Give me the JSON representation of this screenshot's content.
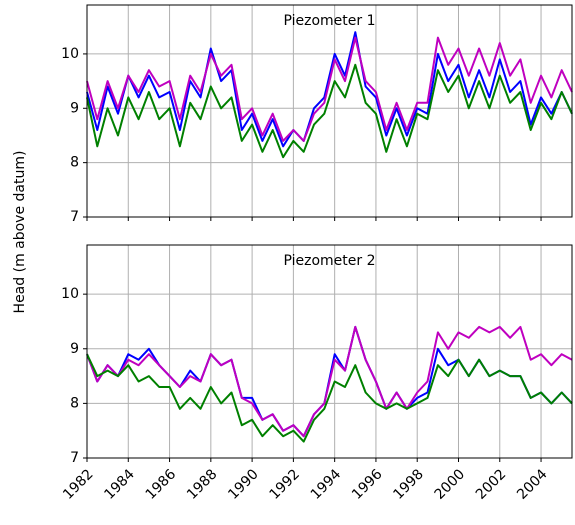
{
  "chart_data": [
    {
      "type": "line",
      "title": "Piezometer 1",
      "ylabel": "Head (m above datum)",
      "x": [
        1982,
        1982.5,
        1983,
        1983.5,
        1984,
        1984.5,
        1985,
        1985.5,
        1986,
        1986.5,
        1987,
        1987.5,
        1988,
        1988.5,
        1989,
        1989.5,
        1990,
        1990.5,
        1991,
        1991.5,
        1992,
        1992.5,
        1993,
        1993.5,
        1994,
        1994.5,
        1995,
        1995.5,
        1996,
        1996.5,
        1997,
        1997.5,
        1998,
        1998.5,
        1999,
        1999.5,
        2000,
        2000.5,
        2001,
        2001.5,
        2002,
        2002.5,
        2003,
        2003.5,
        2004,
        2004.5,
        2005,
        2005.5
      ],
      "series": [
        {
          "color": "#0000ff",
          "values": [
            9.3,
            8.6,
            9.4,
            8.9,
            9.6,
            9.2,
            9.6,
            9.2,
            9.3,
            8.6,
            9.5,
            9.2,
            10.1,
            9.5,
            9.7,
            8.6,
            8.9,
            8.4,
            8.8,
            8.3,
            8.6,
            8.4,
            9.0,
            9.2,
            10.0,
            9.6,
            10.4,
            9.4,
            9.2,
            8.5,
            9.0,
            8.5,
            9.0,
            8.9,
            10.0,
            9.5,
            9.8,
            9.2,
            9.7,
            9.2,
            9.9,
            9.3,
            9.5,
            8.7,
            9.2,
            8.9,
            9.3,
            8.9
          ]
        },
        {
          "color": "#bf00bf",
          "values": [
            9.5,
            8.8,
            9.5,
            9.0,
            9.6,
            9.3,
            9.7,
            9.4,
            9.5,
            8.8,
            9.6,
            9.3,
            10.0,
            9.6,
            9.8,
            8.8,
            9.0,
            8.5,
            8.9,
            8.4,
            8.6,
            8.4,
            8.9,
            9.1,
            9.9,
            9.5,
            10.3,
            9.5,
            9.3,
            8.6,
            9.1,
            8.6,
            9.1,
            9.1,
            10.3,
            9.8,
            10.1,
            9.6,
            10.1,
            9.6,
            10.2,
            9.6,
            9.9,
            9.1,
            9.6,
            9.2,
            9.7,
            9.3
          ]
        },
        {
          "color": "#008000",
          "values": [
            9.2,
            8.3,
            9.0,
            8.5,
            9.2,
            8.8,
            9.3,
            8.8,
            9.0,
            8.3,
            9.1,
            8.8,
            9.4,
            9.0,
            9.2,
            8.4,
            8.7,
            8.2,
            8.6,
            8.1,
            8.4,
            8.2,
            8.7,
            8.9,
            9.5,
            9.2,
            9.8,
            9.1,
            8.9,
            8.2,
            8.8,
            8.3,
            8.9,
            8.8,
            9.7,
            9.3,
            9.6,
            9.0,
            9.5,
            9.0,
            9.6,
            9.1,
            9.3,
            8.6,
            9.1,
            8.8,
            9.3,
            8.9
          ]
        }
      ],
      "xlim": [
        1982,
        2005.5
      ],
      "xticks": [
        1982,
        1984,
        1986,
        1988,
        1990,
        1992,
        1994,
        1996,
        1998,
        2000,
        2002,
        2004
      ],
      "ylim": [
        7,
        10.9
      ],
      "yticks": [
        7,
        8,
        9,
        10
      ],
      "grid": true
    },
    {
      "type": "line",
      "title": "Piezometer 2",
      "x": [
        1982,
        1982.5,
        1983,
        1983.5,
        1984,
        1984.5,
        1985,
        1985.5,
        1986,
        1986.5,
        1987,
        1987.5,
        1988,
        1988.5,
        1989,
        1989.5,
        1990,
        1990.5,
        1991,
        1991.5,
        1992,
        1992.5,
        1993,
        1993.5,
        1994,
        1994.5,
        1995,
        1995.5,
        1996,
        1996.5,
        1997,
        1997.5,
        1998,
        1998.5,
        1999,
        1999.5,
        2000,
        2000.5,
        2001,
        2001.5,
        2002,
        2002.5,
        2003,
        2003.5,
        2004,
        2004.5,
        2005,
        2005.5
      ],
      "series": [
        {
          "color": "#0000ff",
          "values": [
            8.9,
            8.4,
            8.7,
            8.5,
            8.9,
            8.8,
            9.0,
            8.7,
            8.5,
            8.3,
            8.6,
            8.4,
            8.9,
            8.7,
            8.8,
            8.1,
            8.1,
            7.7,
            7.8,
            7.5,
            7.6,
            7.4,
            7.8,
            8.0,
            8.9,
            8.6,
            9.4,
            8.8,
            8.4,
            7.9,
            8.2,
            7.9,
            8.1,
            8.2,
            9.0,
            8.7,
            8.8,
            8.5,
            8.8,
            8.5,
            8.6,
            8.5,
            8.5,
            8.1,
            8.2,
            8.0,
            8.2,
            8.0
          ]
        },
        {
          "color": "#bf00bf",
          "values": [
            8.9,
            8.4,
            8.7,
            8.5,
            8.8,
            8.7,
            8.9,
            8.7,
            8.5,
            8.3,
            8.5,
            8.4,
            8.9,
            8.7,
            8.8,
            8.1,
            8.0,
            7.7,
            7.8,
            7.5,
            7.6,
            7.4,
            7.8,
            8.0,
            8.8,
            8.6,
            9.4,
            8.8,
            8.4,
            7.9,
            8.2,
            7.9,
            8.2,
            8.4,
            9.3,
            9.0,
            9.3,
            9.2,
            9.4,
            9.3,
            9.4,
            9.2,
            9.4,
            8.8,
            8.9,
            8.7,
            8.9,
            8.8
          ]
        },
        {
          "color": "#008000",
          "values": [
            8.9,
            8.5,
            8.6,
            8.5,
            8.7,
            8.4,
            8.5,
            8.3,
            8.3,
            7.9,
            8.1,
            7.9,
            8.3,
            8.0,
            8.2,
            7.6,
            7.7,
            7.4,
            7.6,
            7.4,
            7.5,
            7.3,
            7.7,
            7.9,
            8.4,
            8.3,
            8.7,
            8.2,
            8.0,
            7.9,
            8.0,
            7.9,
            8.0,
            8.1,
            8.7,
            8.5,
            8.8,
            8.5,
            8.8,
            8.5,
            8.6,
            8.5,
            8.5,
            8.1,
            8.2,
            8.0,
            8.2,
            8.0
          ]
        }
      ],
      "xlim": [
        1982,
        2005.5
      ],
      "xticks": [
        1982,
        1984,
        1986,
        1988,
        1990,
        1992,
        1994,
        1996,
        1998,
        2000,
        2002,
        2004
      ],
      "ylim": [
        7,
        10.9
      ],
      "yticks": [
        7,
        8,
        9,
        10
      ],
      "grid": true,
      "xticklabels": true
    }
  ]
}
